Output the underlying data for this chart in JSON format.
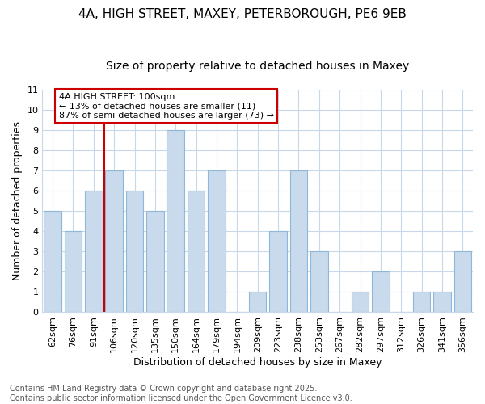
{
  "title_line1": "4A, HIGH STREET, MAXEY, PETERBOROUGH, PE6 9EB",
  "title_line2": "Size of property relative to detached houses in Maxey",
  "xlabel": "Distribution of detached houses by size in Maxey",
  "ylabel": "Number of detached properties",
  "categories": [
    "62sqm",
    "76sqm",
    "91sqm",
    "106sqm",
    "120sqm",
    "135sqm",
    "150sqm",
    "164sqm",
    "179sqm",
    "194sqm",
    "209sqm",
    "223sqm",
    "238sqm",
    "253sqm",
    "267sqm",
    "282sqm",
    "297sqm",
    "312sqm",
    "326sqm",
    "341sqm",
    "356sqm"
  ],
  "values": [
    5,
    4,
    6,
    7,
    6,
    5,
    9,
    6,
    7,
    0,
    1,
    4,
    7,
    3,
    0,
    1,
    2,
    0,
    1,
    1,
    3
  ],
  "bar_color": "#c8daeb",
  "bar_edge_color": "#8fb8d8",
  "red_line_x": 2.5,
  "annotation_line1": "4A HIGH STREET: 100sqm",
  "annotation_line2": "← 13% of detached houses are smaller (11)",
  "annotation_line3": "87% of semi-detached houses are larger (73) →",
  "annotation_box_color": "#ffffff",
  "annotation_box_edge": "#cc0000",
  "ylim": [
    0,
    11
  ],
  "yticks": [
    0,
    1,
    2,
    3,
    4,
    5,
    6,
    7,
    8,
    9,
    10,
    11
  ],
  "footer": "Contains HM Land Registry data © Crown copyright and database right 2025.\nContains public sector information licensed under the Open Government Licence v3.0.",
  "background_color": "#ffffff",
  "plot_bg_color": "#ffffff",
  "grid_color": "#c8d8e8",
  "title_fontsize": 11,
  "subtitle_fontsize": 10,
  "tick_fontsize": 8,
  "label_fontsize": 9,
  "footer_fontsize": 7,
  "annot_fontsize": 8
}
